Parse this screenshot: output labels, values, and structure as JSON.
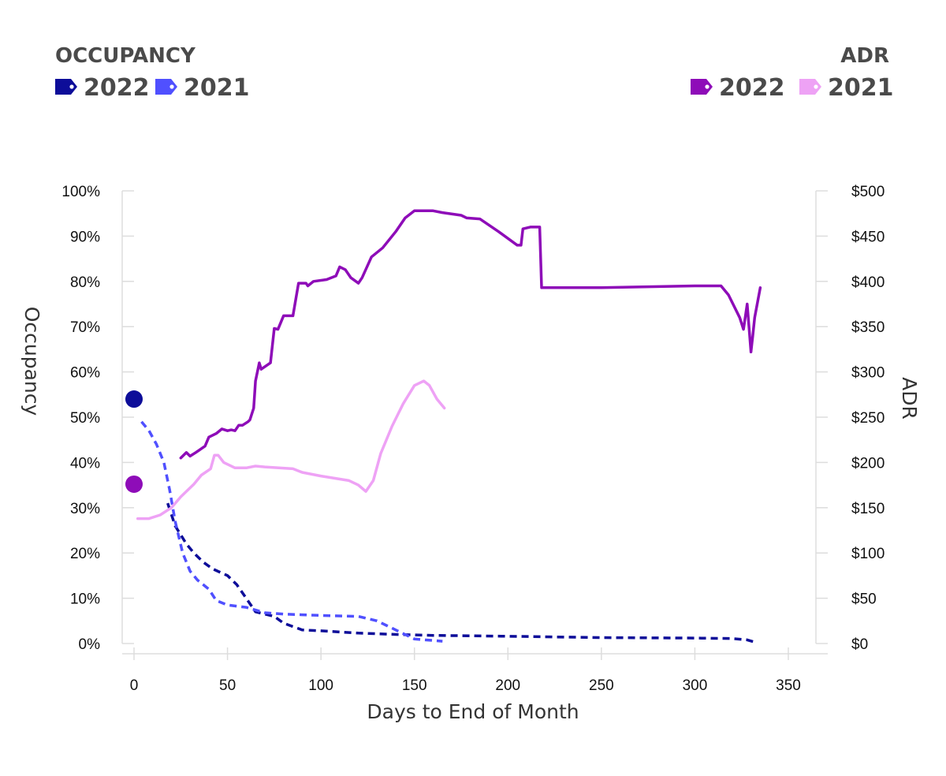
{
  "legend": {
    "occupancy_title": "OCCUPANCY",
    "adr_title": "ADR",
    "occupancy_items": [
      {
        "label": "2022",
        "color": "#0d0d99"
      },
      {
        "label": "2021",
        "color": "#5050ff"
      }
    ],
    "adr_items": [
      {
        "label": "2022",
        "color": "#8e0cb8"
      },
      {
        "label": "2021",
        "color": "#eea2f5"
      }
    ]
  },
  "chart_data": {
    "type": "line",
    "xlabel": "Days to End of Month",
    "ylabel_left": "Occupancy",
    "ylabel_right": "ADR",
    "xlim": [
      0,
      350
    ],
    "ylim_left": [
      0,
      100
    ],
    "ylim_right": [
      0,
      500
    ],
    "x_ticks": [
      "0",
      "50",
      "100",
      "150",
      "200",
      "250",
      "300",
      "350"
    ],
    "y_left_ticks": [
      "0%",
      "10%",
      "20%",
      "30%",
      "40%",
      "50%",
      "60%",
      "70%",
      "80%",
      "90%",
      "100%"
    ],
    "y_right_ticks": [
      "$0",
      "$50",
      "$100",
      "$150",
      "$200",
      "$250",
      "$300",
      "$350",
      "$400",
      "$450",
      "$500"
    ],
    "series": [
      {
        "name": "Occupancy 2022",
        "axis": "left",
        "style": "dashed",
        "color": "#0d0d99",
        "points": [
          [
            18,
            31
          ],
          [
            22,
            26
          ],
          [
            28,
            22
          ],
          [
            32,
            20
          ],
          [
            37,
            18
          ],
          [
            42,
            16.5
          ],
          [
            50,
            15
          ],
          [
            55,
            13
          ],
          [
            60,
            10
          ],
          [
            65,
            7
          ],
          [
            70,
            6.5
          ],
          [
            75,
            6
          ],
          [
            80,
            4.5
          ],
          [
            90,
            3
          ],
          [
            100,
            2.8
          ],
          [
            120,
            2.3
          ],
          [
            140,
            2
          ],
          [
            160,
            1.8
          ],
          [
            200,
            1.6
          ],
          [
            250,
            1.3
          ],
          [
            300,
            1.2
          ],
          [
            320,
            1.1
          ],
          [
            328,
            0.8
          ],
          [
            333,
            0.2
          ]
        ]
      },
      {
        "name": "Occupancy 2021",
        "axis": "left",
        "style": "dashed",
        "color": "#5050ff",
        "points": [
          [
            4,
            49
          ],
          [
            8,
            47
          ],
          [
            12,
            44
          ],
          [
            16,
            40
          ],
          [
            19,
            34
          ],
          [
            22,
            27
          ],
          [
            26,
            20
          ],
          [
            30,
            16
          ],
          [
            34,
            14
          ],
          [
            40,
            12
          ],
          [
            44,
            9.5
          ],
          [
            50,
            8.5
          ],
          [
            60,
            8
          ],
          [
            70,
            6.8
          ],
          [
            80,
            6.5
          ],
          [
            100,
            6.2
          ],
          [
            120,
            6
          ],
          [
            130,
            5
          ],
          [
            140,
            3
          ],
          [
            150,
            1
          ],
          [
            165,
            0.5
          ]
        ]
      },
      {
        "name": "ADR 2022",
        "axis": "right",
        "style": "solid",
        "color": "#8e0cb8",
        "points": [
          [
            25,
            205
          ],
          [
            28,
            211
          ],
          [
            30,
            207
          ],
          [
            33,
            211
          ],
          [
            38,
            218
          ],
          [
            40,
            228
          ],
          [
            44,
            232
          ],
          [
            47,
            237
          ],
          [
            50,
            235
          ],
          [
            52,
            236
          ],
          [
            54,
            235
          ],
          [
            56,
            241
          ],
          [
            58,
            241
          ],
          [
            61,
            245
          ],
          [
            62,
            247
          ],
          [
            64,
            260
          ],
          [
            65,
            290
          ],
          [
            67,
            310
          ],
          [
            68,
            303
          ],
          [
            73,
            310
          ],
          [
            75,
            348
          ],
          [
            77,
            347
          ],
          [
            80,
            362
          ],
          [
            85,
            362
          ],
          [
            88,
            398
          ],
          [
            92,
            398
          ],
          [
            93,
            395
          ],
          [
            96,
            400
          ],
          [
            103,
            402
          ],
          [
            108,
            406
          ],
          [
            110,
            416
          ],
          [
            113,
            413
          ],
          [
            116,
            404
          ],
          [
            120,
            398
          ],
          [
            122,
            404
          ],
          [
            127,
            427
          ],
          [
            133,
            437
          ],
          [
            140,
            455
          ],
          [
            145,
            470
          ],
          [
            150,
            478
          ],
          [
            160,
            478
          ],
          [
            165,
            476
          ],
          [
            175,
            473
          ],
          [
            178,
            470
          ],
          [
            185,
            469
          ],
          [
            195,
            455
          ],
          [
            205,
            440
          ],
          [
            207,
            440
          ],
          [
            208,
            458
          ],
          [
            212,
            460
          ],
          [
            217,
            460
          ],
          [
            218,
            393
          ],
          [
            250,
            393
          ],
          [
            300,
            395
          ],
          [
            314,
            395
          ],
          [
            318,
            385
          ],
          [
            324,
            360
          ],
          [
            326,
            347
          ],
          [
            328,
            375
          ],
          [
            330,
            322
          ],
          [
            331,
            340
          ],
          [
            332,
            360
          ],
          [
            335,
            393
          ]
        ]
      },
      {
        "name": "ADR 2021",
        "axis": "right",
        "style": "solid",
        "color": "#eea2f5",
        "points": [
          [
            2,
            138
          ],
          [
            8,
            138
          ],
          [
            14,
            142
          ],
          [
            20,
            150
          ],
          [
            25,
            162
          ],
          [
            28,
            168
          ],
          [
            32,
            176
          ],
          [
            36,
            186
          ],
          [
            41,
            193
          ],
          [
            43,
            208
          ],
          [
            45,
            208
          ],
          [
            48,
            200
          ],
          [
            54,
            194
          ],
          [
            60,
            194
          ],
          [
            65,
            196
          ],
          [
            70,
            195
          ],
          [
            85,
            193
          ],
          [
            90,
            189
          ],
          [
            100,
            185
          ],
          [
            115,
            180
          ],
          [
            120,
            175
          ],
          [
            124,
            168
          ],
          [
            128,
            180
          ],
          [
            132,
            210
          ],
          [
            138,
            240
          ],
          [
            144,
            265
          ],
          [
            150,
            285
          ],
          [
            155,
            290
          ],
          [
            158,
            285
          ],
          [
            162,
            270
          ],
          [
            166,
            260
          ]
        ]
      }
    ],
    "current_markers": [
      {
        "name": "Current Occupancy 2022",
        "axis": "left",
        "x": 0,
        "y": 54,
        "color": "#0d0d99"
      },
      {
        "name": "Current ADR 2022",
        "axis": "right",
        "x": 0,
        "y": 176,
        "color": "#8e0cb8"
      }
    ]
  }
}
